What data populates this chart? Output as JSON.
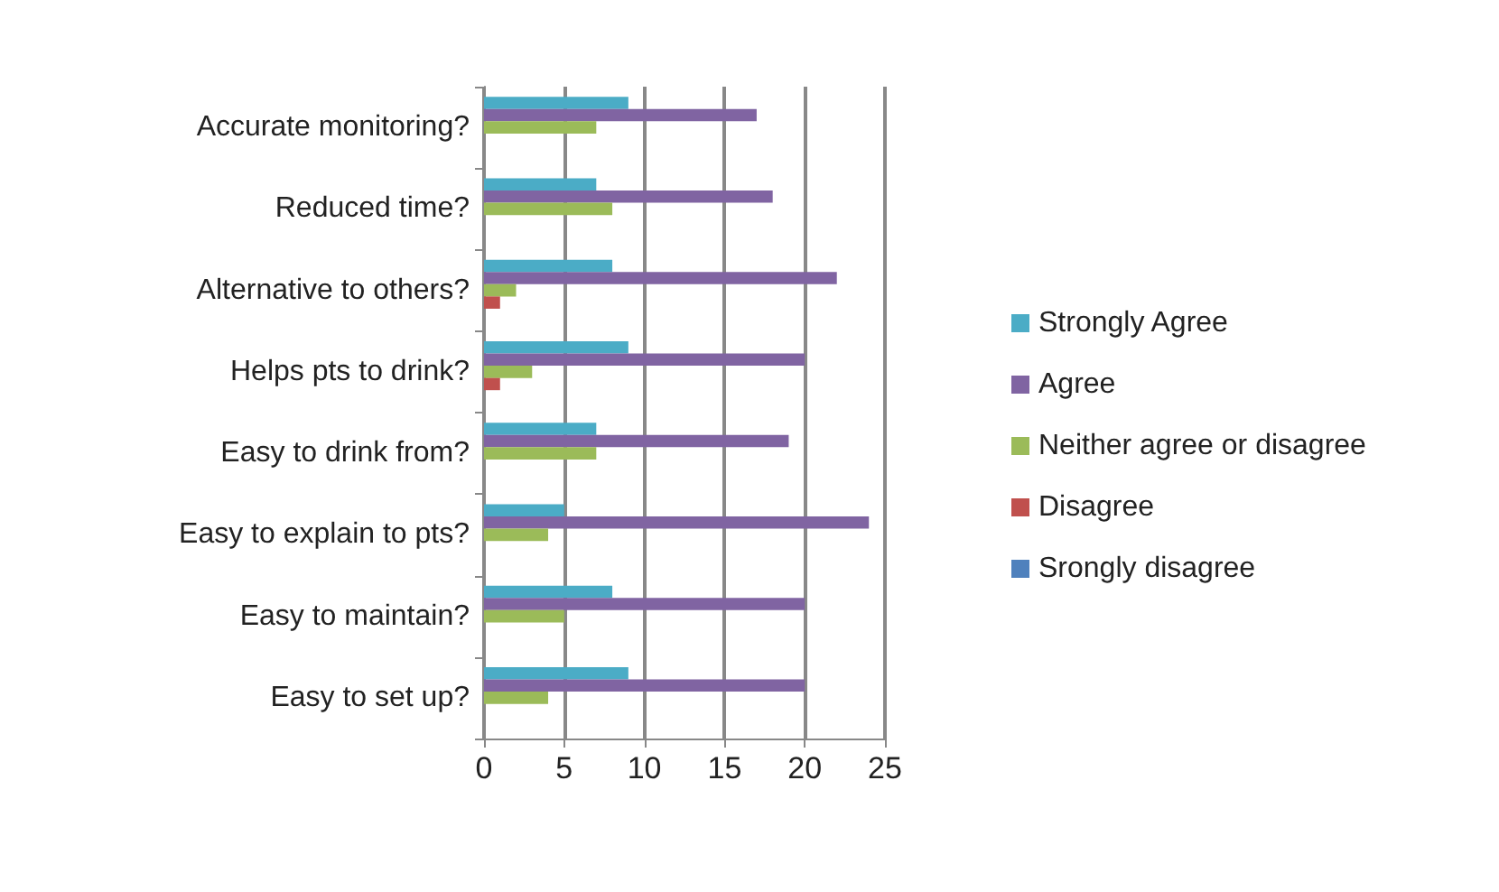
{
  "chart_data": {
    "type": "bar",
    "orientation": "horizontal",
    "categories": [
      "Accurate monitoring?",
      "Reduced time?",
      "Alternative to others?",
      "Helps pts to drink?",
      "Easy to drink from?",
      "Easy to explain to pts?",
      "Easy to maintain?",
      "Easy to set up?"
    ],
    "series": [
      {
        "name": "Strongly Agree",
        "color": "#4bacc6",
        "values": [
          9,
          7,
          8,
          9,
          7,
          5,
          8,
          9
        ]
      },
      {
        "name": "Agree",
        "color": "#8064a2",
        "values": [
          17,
          18,
          22,
          20,
          19,
          24,
          20,
          20
        ]
      },
      {
        "name": "Neither agree or disagree",
        "color": "#9bbb59",
        "values": [
          7,
          8,
          2,
          3,
          7,
          4,
          5,
          4
        ]
      },
      {
        "name": "Disagree",
        "color": "#c0504d",
        "values": [
          0,
          0,
          1,
          1,
          0,
          0,
          0,
          0
        ]
      },
      {
        "name": "Srongly disagree",
        "color": "#4f81bd",
        "values": [
          0,
          0,
          0,
          0,
          0,
          0,
          0,
          0
        ]
      }
    ],
    "xlim": [
      0,
      25
    ],
    "xticks": [
      0,
      5,
      10,
      15,
      20,
      25
    ],
    "grid": "x",
    "legend": "right"
  }
}
